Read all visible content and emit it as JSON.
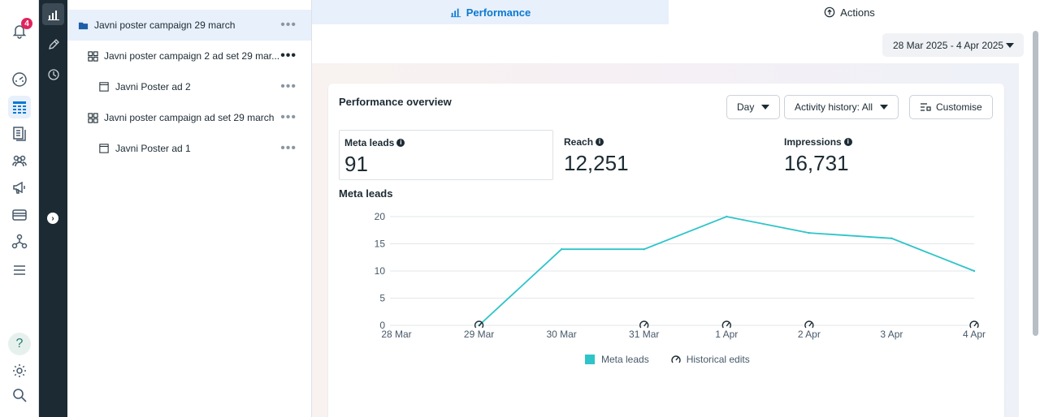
{
  "notifications": {
    "count": "4"
  },
  "tree": {
    "items": [
      {
        "label": "Javni poster campaign 29 march",
        "type": "campaign",
        "selected": true
      },
      {
        "label": "Javni poster campaign 2 ad set 29 mar...",
        "type": "adset"
      },
      {
        "label": "Javni Poster ad 2",
        "type": "ad"
      },
      {
        "label": "Javni poster campaign ad set 29 march",
        "type": "adset"
      },
      {
        "label": "Javni Poster ad 1",
        "type": "ad"
      }
    ]
  },
  "tabs": [
    {
      "label": "Performance",
      "icon": "bar-chart-icon"
    },
    {
      "label": "Actions",
      "icon": "arrow-up-circle-icon"
    }
  ],
  "date_range": "28 Mar 2025 - 4 Apr 2025",
  "card": {
    "title": "Performance overview",
    "day_label": "Day",
    "activity_label": "Activity history: All",
    "customise_label": "Customise"
  },
  "metrics": [
    {
      "label": "Meta leads",
      "value": "91"
    },
    {
      "label": "Reach",
      "value": "12,251"
    },
    {
      "label": "Impressions",
      "value": "16,731"
    }
  ],
  "chart_data": {
    "type": "line",
    "title": "Meta leads",
    "x": [
      "28 Mar",
      "29 Mar",
      "30 Mar",
      "31 Mar",
      "1 Apr",
      "2 Apr",
      "3 Apr",
      "4 Apr"
    ],
    "series": [
      {
        "name": "Meta leads",
        "values": [
          null,
          0,
          14,
          14,
          20,
          17,
          16,
          10
        ],
        "color": "#2ec4c9"
      }
    ],
    "historical_edits_at": [
      "29 Mar",
      "31 Mar",
      "1 Apr",
      "2 Apr",
      "4 Apr"
    ],
    "yticks": [
      0,
      5,
      10,
      15,
      20
    ],
    "ylim": [
      0,
      20
    ],
    "grid": true,
    "legend": [
      {
        "label": "Meta leads"
      },
      {
        "label": "Historical edits"
      }
    ],
    "legend_position": "bottom"
  }
}
